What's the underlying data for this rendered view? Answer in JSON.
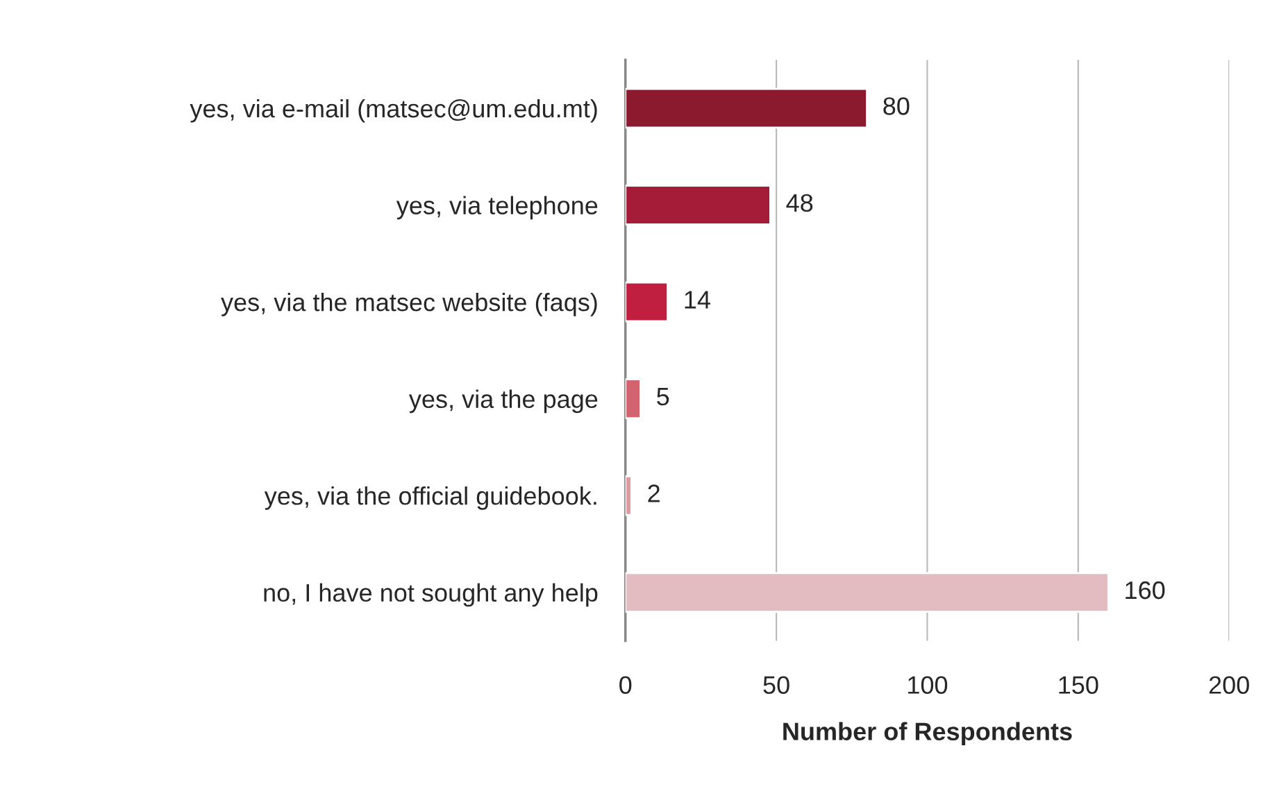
{
  "chart_data": {
    "type": "bar",
    "orientation": "horizontal",
    "xlabel": "Number of Respondents",
    "categories": [
      "yes, via e-mail (matsec@um.edu.mt)",
      "yes, via telephone",
      "yes, via the matsec website (faqs)",
      "yes, via the page",
      "yes, via the official guidebook.",
      "no, I have not sought any help"
    ],
    "values": [
      80,
      48,
      14,
      5,
      2,
      160
    ],
    "colors": [
      "#8b1a2e",
      "#a51c38",
      "#c01f40",
      "#d3646f",
      "#dc9aa2",
      "#e3bcc2"
    ],
    "xlim": [
      0,
      200
    ],
    "xticks": [
      0,
      50,
      100,
      150,
      200
    ],
    "grid": "x",
    "data_labels": true
  }
}
